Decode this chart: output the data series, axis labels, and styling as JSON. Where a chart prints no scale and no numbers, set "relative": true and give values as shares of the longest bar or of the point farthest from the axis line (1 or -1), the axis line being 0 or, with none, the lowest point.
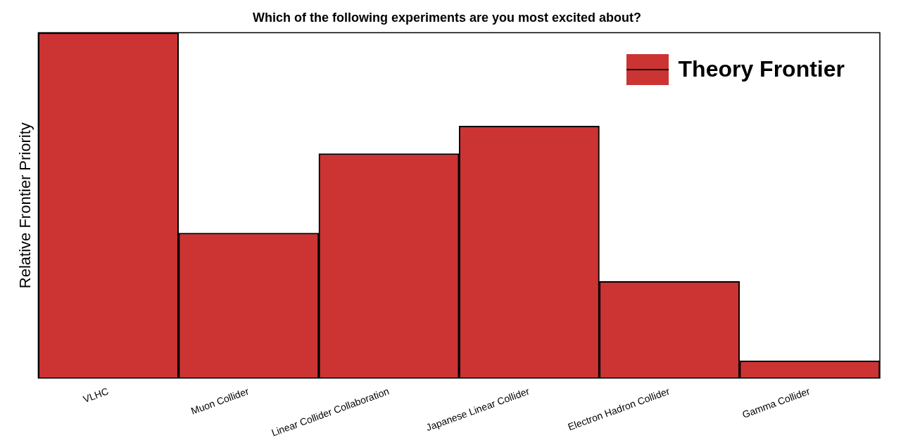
{
  "chart_data": {
    "type": "bar",
    "title": "Which of the following experiments are you most excited about?",
    "ylabel": "Relative Frontier Priority",
    "relative": true,
    "categories": [
      "VLHC",
      "Muon Collider",
      "Linear Collider Collaboration",
      "Japanese Linear Collider",
      "Electron Hadron Collider",
      "Gamma Collider"
    ],
    "series": [
      {
        "name": "Theory Frontier",
        "color": "#cc3333",
        "values": [
          1,
          0.42,
          0.65,
          0.73,
          0.28,
          0.05
        ]
      }
    ],
    "legend": "top right",
    "grid": false
  }
}
